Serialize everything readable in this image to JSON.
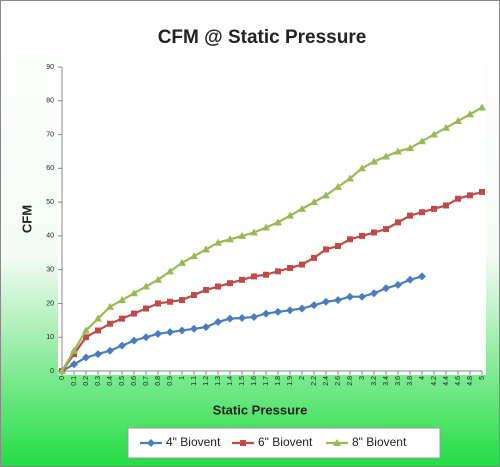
{
  "chart_data": {
    "type": "line",
    "title": "CFM @ Static Pressure",
    "x_label": "Static Pressure",
    "y_label": "CFM",
    "categories": [
      "0",
      "0.1",
      "0.2",
      "0.3",
      "0.4",
      "0.5",
      "0.6",
      "0.7",
      "0.8",
      "0.9",
      "1",
      "1.1",
      "1.2",
      "1.3",
      "1.4",
      "1.5",
      "1.6",
      "1.7",
      "1.8",
      "1.9",
      "2",
      "2.2",
      "2.4",
      "2.6",
      "2.8",
      "3",
      "3.2",
      "3.4",
      "3.6",
      "3.8",
      "4",
      "4.2",
      "4.4",
      "4.6",
      "4.8",
      "5"
    ],
    "series": [
      {
        "name": "4\" Biovent",
        "color": "#4a7ebb",
        "marker": "diamond",
        "values": [
          0,
          2,
          4,
          5,
          6,
          7.5,
          9,
          10,
          11,
          11.5,
          12,
          12.5,
          13,
          14.5,
          15.5,
          15.7,
          16,
          17,
          17.5,
          18,
          18.5,
          19.5,
          20.5,
          21,
          22,
          22,
          23,
          24.5,
          25.5,
          27,
          28,
          null,
          null,
          null,
          null,
          null
        ]
      },
      {
        "name": "6\" Biovent",
        "color": "#be4b48",
        "marker": "square",
        "values": [
          0,
          5,
          10,
          12,
          14,
          15.5,
          17,
          18.5,
          20,
          20.5,
          21,
          22.5,
          24,
          25,
          26,
          27,
          28,
          28.5,
          29.5,
          30.5,
          31.5,
          33.5,
          36,
          37,
          39,
          40,
          41,
          42,
          44,
          46,
          47,
          48,
          49,
          51,
          52,
          53
        ]
      },
      {
        "name": "8\" Biovent",
        "color": "#98b954",
        "marker": "triangle",
        "values": [
          0,
          6,
          12,
          15.5,
          19,
          21,
          23,
          25,
          27,
          29.5,
          32,
          34,
          36,
          38,
          39,
          40,
          41,
          42.5,
          44,
          46,
          48,
          50,
          52,
          54.5,
          57,
          60,
          62,
          63.5,
          65,
          66,
          68,
          70,
          72,
          74,
          76,
          78
        ]
      }
    ],
    "ylim": [
      0,
      90
    ],
    "yticks": [
      0,
      10,
      20,
      30,
      40,
      50,
      60,
      70,
      80,
      90
    ],
    "grid": false,
    "legend": "bottom"
  }
}
